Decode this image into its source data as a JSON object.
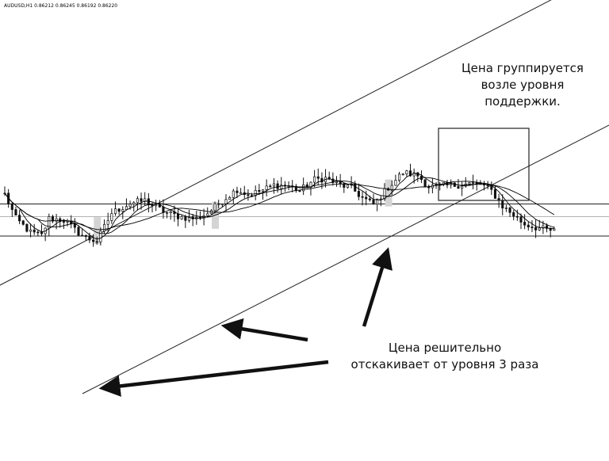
{
  "chart_data": {
    "type": "candlestick",
    "symbol": "AUDUSD,H1",
    "ohlc_header": [
      "0.86212",
      "0.86245",
      "0.86192",
      "0.86220"
    ],
    "x_axis": "bar index (hourly bars)",
    "y_axis": "price",
    "bars": 150,
    "price_path": [
      [
        0,
        0.8685
      ],
      [
        3,
        0.865
      ],
      [
        7,
        0.863
      ],
      [
        10,
        0.8626
      ],
      [
        12,
        0.865
      ],
      [
        16,
        0.8648
      ],
      [
        19,
        0.8634
      ],
      [
        22,
        0.8622
      ],
      [
        25,
        0.8618
      ],
      [
        29,
        0.8658
      ],
      [
        34,
        0.8672
      ],
      [
        38,
        0.8676
      ],
      [
        40,
        0.8669
      ],
      [
        44,
        0.8658
      ],
      [
        48,
        0.8652
      ],
      [
        52,
        0.865
      ],
      [
        55,
        0.8658
      ],
      [
        59,
        0.8676
      ],
      [
        63,
        0.8692
      ],
      [
        66,
        0.8684
      ],
      [
        70,
        0.8691
      ],
      [
        73,
        0.8698
      ],
      [
        77,
        0.8697
      ],
      [
        80,
        0.869
      ],
      [
        84,
        0.8706
      ],
      [
        87,
        0.8708
      ],
      [
        90,
        0.87
      ],
      [
        94,
        0.8694
      ],
      [
        97,
        0.868
      ],
      [
        100,
        0.867
      ],
      [
        104,
        0.8695
      ],
      [
        108,
        0.8716
      ],
      [
        112,
        0.8712
      ],
      [
        115,
        0.8696
      ],
      [
        119,
        0.8697
      ],
      [
        122,
        0.8698
      ],
      [
        126,
        0.87
      ],
      [
        129,
        0.87
      ],
      [
        132,
        0.869
      ],
      [
        135,
        0.8668
      ],
      [
        138,
        0.8655
      ],
      [
        141,
        0.8642
      ],
      [
        145,
        0.8636
      ],
      [
        149,
        0.8632
      ]
    ],
    "moving_averages": [
      {
        "period": 5,
        "color": "#000000"
      },
      {
        "period": 10,
        "color": "#000000"
      },
      {
        "period": 20,
        "color": "#000000"
      }
    ],
    "horizontal_levels": [
      0.8671,
      0.8653,
      0.8625
    ],
    "trend_channel": {
      "lower_touches": 3
    },
    "annotations": [
      {
        "id": "support-group",
        "lines": [
          "Цена группируется",
          "возле уровня",
          "поддержки."
        ]
      },
      {
        "id": "bounce",
        "lines": [
          "Цена решительно",
          "отскакивает от уровня 3 раза"
        ]
      }
    ],
    "grid": false,
    "legend": "none"
  }
}
